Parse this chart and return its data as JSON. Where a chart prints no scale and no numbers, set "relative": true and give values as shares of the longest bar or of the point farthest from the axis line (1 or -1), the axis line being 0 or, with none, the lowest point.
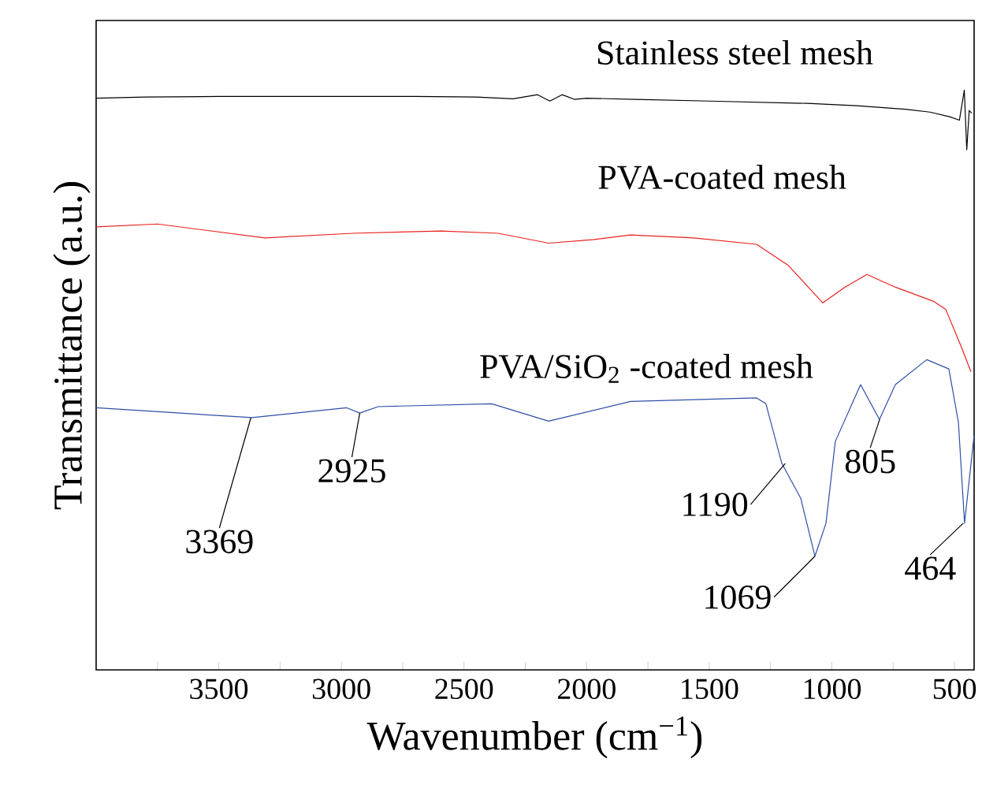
{
  "chart_data": {
    "type": "line",
    "relative": true,
    "xlabel": "Wavenumber (cm$^{−1}$)",
    "ylabel": "Transmittance (a.u.)",
    "xlim": [
      4000,
      420
    ],
    "xticks": [
      {
        "value": 3750,
        "label": null
      },
      3500,
      {
        "value": 3250,
        "label": null
      },
      3000,
      {
        "value": 2750,
        "label": null
      },
      2500,
      {
        "value": 2250,
        "label": null
      },
      2000,
      {
        "value": 1750,
        "label": null
      },
      1500,
      {
        "value": 1250,
        "label": null
      },
      1000,
      {
        "value": 750,
        "label": null
      },
      500
    ],
    "marker": "none",
    "line_style": "solid",
    "series": [
      {
        "name": "Stainless steel mesh",
        "color": "#000000",
        "x": [
          4000,
          3800,
          3500,
          3000,
          2700,
          2450,
          2300,
          2200,
          2150,
          2100,
          2050,
          2000,
          1800,
          1500,
          1100,
          900,
          700,
          600,
          520,
          480,
          460,
          450,
          440,
          430
        ],
        "values": [
          0.986,
          0.988,
          0.989,
          0.989,
          0.989,
          0.988,
          0.985,
          0.992,
          0.981,
          0.992,
          0.984,
          0.986,
          0.984,
          0.981,
          0.977,
          0.973,
          0.967,
          0.962,
          0.954,
          0.948,
          1.0,
          0.897,
          0.965,
          0.96
        ]
      },
      {
        "name": "PVA-coated mesh",
        "color": "#e8211f",
        "x": [
          4000,
          3750,
          3312,
          2952,
          2592,
          2361,
          2155,
          1975,
          1821,
          1564,
          1307,
          1179,
          1037,
          947,
          857,
          741,
          587,
          536,
          472,
          433
        ],
        "values": [
          0.764,
          0.769,
          0.745,
          0.753,
          0.757,
          0.753,
          0.736,
          0.742,
          0.75,
          0.745,
          0.734,
          0.698,
          0.633,
          0.66,
          0.682,
          0.66,
          0.636,
          0.622,
          0.557,
          0.514
        ]
      },
      {
        "name": "PVA/SiO$_{2}$ -coated mesh",
        "color": "#2e4fa8",
        "x": [
          4000,
          3364,
          2978,
          2925,
          2850,
          2387,
          2155,
          1821,
          1307,
          1269,
          1204,
          1127,
          1069,
          1024,
          986,
          883,
          806,
          741,
          613,
          523,
          484,
          459,
          420
        ],
        "values": [
          0.452,
          0.435,
          0.452,
          0.443,
          0.454,
          0.459,
          0.429,
          0.463,
          0.469,
          0.459,
          0.356,
          0.296,
          0.196,
          0.253,
          0.394,
          0.492,
          0.432,
          0.492,
          0.535,
          0.519,
          0.427,
          0.253,
          0.405
        ]
      }
    ],
    "annotations": [
      {
        "text": "3369",
        "x": 3369,
        "y": 0.435
      },
      {
        "text": "2925",
        "x": 2925,
        "y": 0.443
      },
      {
        "text": "1190",
        "x": 1190,
        "y": 0.356
      },
      {
        "text": "1069",
        "x": 1069,
        "y": 0.196
      },
      {
        "text": "805",
        "x": 805,
        "y": 0.432
      },
      {
        "text": "464",
        "x": 464,
        "y": 0.253
      }
    ]
  }
}
